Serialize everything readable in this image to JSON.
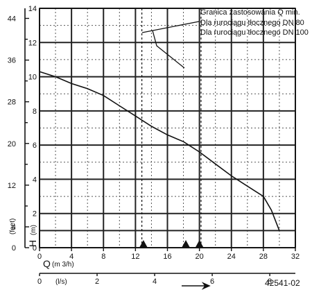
{
  "chart_data": {
    "type": "line",
    "grid": "on",
    "xlabel": "Q",
    "xlabel_unit": "(m 3/h)",
    "ylabel": "H",
    "ylabel_unit": "(m)",
    "y2label": "(feet)",
    "x2label_unit": "(l/s)",
    "xlim": [
      0,
      32
    ],
    "ylim": [
      0,
      14
    ],
    "x_ticks": [
      0,
      4,
      8,
      12,
      16,
      20,
      24,
      28,
      32
    ],
    "y_ticks": [
      0,
      2,
      4,
      6,
      8,
      10,
      12,
      14
    ],
    "feet_ticks": [
      0,
      4,
      12,
      20,
      28,
      36,
      44
    ],
    "feet_tick_labels": [
      "0",
      "4",
      "12",
      "20",
      "28",
      "36",
      "44"
    ],
    "ls_ticks": [
      0,
      2,
      4,
      6,
      8
    ],
    "ls_tick_labels": [
      "0",
      "2",
      "4",
      "6",
      "8"
    ],
    "series": [
      {
        "x": [
          0,
          2,
          4,
          6,
          8,
          10,
          12,
          14,
          16,
          18,
          20,
          22,
          24,
          26,
          28,
          29,
          30
        ],
        "y": [
          10.3,
          10.0,
          9.6,
          9.3,
          8.9,
          8.3,
          7.7,
          7.1,
          6.6,
          6.2,
          5.6,
          4.9,
          4.2,
          3.6,
          3.0,
          2.2,
          1.0
        ]
      }
    ],
    "vlines_dashed": [
      12.8,
      20.2
    ],
    "markers": [
      13.0,
      18.3,
      20.0
    ],
    "annotations": [
      "Granica zastosowania Q min.",
      "Dla rurociągu tłocznego DN 80",
      "Dla rurociągu tłocznego DN 100"
    ]
  },
  "figure_code": "42541-02",
  "colors": {
    "ink": "#111111",
    "background": "#ffffff"
  }
}
